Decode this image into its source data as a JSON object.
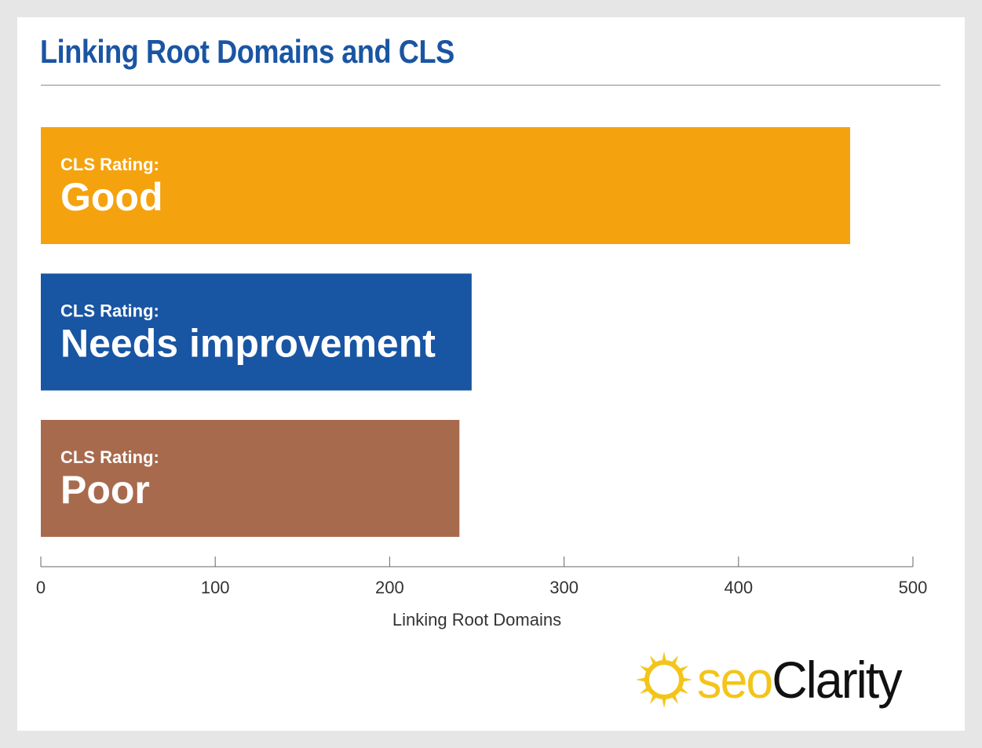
{
  "chart_data": {
    "type": "bar",
    "orientation": "horizontal",
    "title": "Linking Root Domains and CLS",
    "xlabel": "Linking Root Domains",
    "ylabel": "",
    "xlim": [
      0,
      500
    ],
    "xticks": [
      0,
      100,
      200,
      300,
      400,
      500
    ],
    "grid": false,
    "category_prefix": "CLS Rating:",
    "categories": [
      "Good",
      "Needs improvement",
      "Poor"
    ],
    "values": [
      464,
      247,
      240
    ],
    "colors": [
      "#f4a30f",
      "#1855a3",
      "#a86a4d"
    ]
  },
  "brand": {
    "seo": "seo",
    "clarity": "Clarity",
    "sun_color": "#f3c51b"
  }
}
